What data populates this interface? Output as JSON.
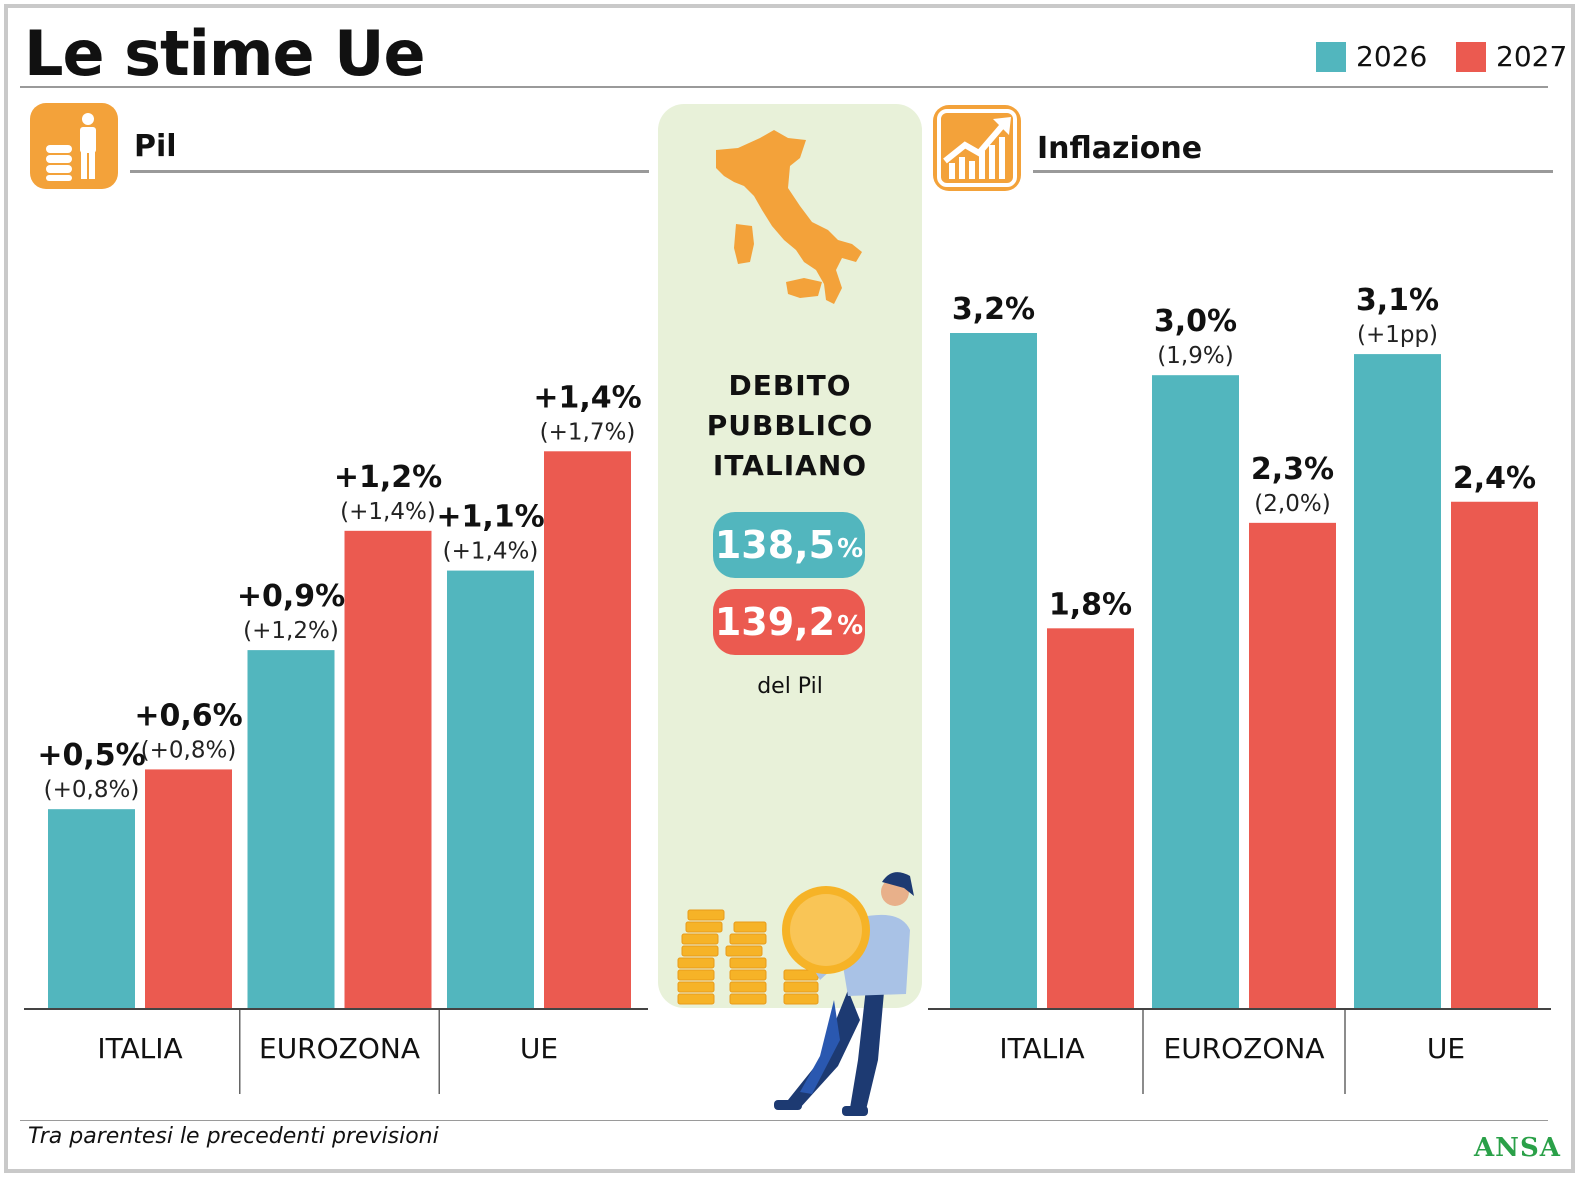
{
  "title": "Le stime Ue",
  "legend": [
    {
      "label": "2026",
      "color": "#52b6be"
    },
    {
      "label": "2027",
      "color": "#eb5a50"
    }
  ],
  "colors": {
    "accent_icon": "#f3a23a",
    "panel_bg": "#e8f1d9"
  },
  "sections": {
    "pil": {
      "title": "Pil",
      "icon": "coins-person-icon"
    },
    "inflazione": {
      "title": "Inflazione",
      "icon": "rising-chart-icon"
    }
  },
  "debt": {
    "title_lines": [
      "DEBITO",
      "PUBBLICO",
      "ITALIANO"
    ],
    "value_2026": "138,5",
    "value_2027": "139,2",
    "unit": "%",
    "note": "del Pil",
    "icons": [
      "italy-map-icon",
      "coin-stack-icon",
      "person-carrying-coin-icon"
    ]
  },
  "chart_data": [
    {
      "type": "bar",
      "categories": [
        "ITALIA",
        "EUROZONA",
        "UE"
      ],
      "series": [
        {
          "name": "2026",
          "values": [
            0.5,
            0.9,
            1.1
          ],
          "labels": [
            "+0,5%",
            "+0,9%",
            "+1,1%"
          ],
          "previous": [
            "(+0,8%)",
            "(+1,2%)",
            "(+1,4%)"
          ]
        },
        {
          "name": "2027",
          "values": [
            0.6,
            1.2,
            1.4
          ],
          "labels": [
            "+0,6%",
            "+1,2%",
            "+1,4%"
          ],
          "previous": [
            "(+0,8%)",
            "(+1,4%)",
            "(+1,7%)"
          ]
        }
      ],
      "title": "Pil",
      "ylim": [
        0,
        1.7
      ]
    },
    {
      "type": "bar",
      "categories": [
        "ITALIA",
        "EUROZONA",
        "UE"
      ],
      "series": [
        {
          "name": "2026",
          "values": [
            3.2,
            3.0,
            3.1
          ],
          "labels": [
            "3,2%",
            "3,0%",
            "3,1%"
          ],
          "previous": [
            "",
            "(1,9%)",
            "(+1pp)"
          ]
        },
        {
          "name": "2027",
          "values": [
            1.8,
            2.3,
            2.4
          ],
          "labels": [
            "1,8%",
            "2,3%",
            "2,4%"
          ],
          "previous": [
            "",
            "(2,0%)",
            ""
          ]
        }
      ],
      "title": "Inflazione",
      "ylim": [
        0,
        3.2
      ]
    }
  ],
  "footnote": "Tra parentesi le precedenti previsioni",
  "brand": "ANSA"
}
